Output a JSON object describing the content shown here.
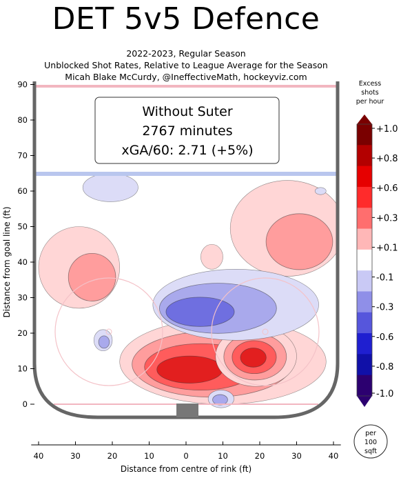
{
  "title": "DET 5v5 Defence",
  "subtitle_lines": [
    "2022-2023, Regular Season",
    "Unblocked Shot Rates, Relative to League Average for the Season",
    "Micah Blake McCurdy, @IneffectiveMath, hockeyviz.com"
  ],
  "annotation_lines": [
    "Without Suter",
    "2767 minutes",
    "xGA/60: 2.71 (+5%)"
  ],
  "per_unit_label": [
    "per",
    "100",
    "sqft"
  ],
  "colorbar": {
    "title_lines": [
      "Excess",
      "shots",
      "per hour"
    ],
    "ticks": [
      "+1.0",
      "+0.8",
      "+0.6",
      "+0.3",
      "+0.1",
      "-0.1",
      "-0.3",
      "-0.6",
      "-0.8",
      "-1.0"
    ],
    "colors": [
      "#7a0000",
      "#b30000",
      "#e60000",
      "#ff2b2b",
      "#ff6e6e",
      "#ffb7b7",
      "#ffffff",
      "#c9c9f5",
      "#8f8fe8",
      "#5656dc",
      "#1f1fd0",
      "#1010a8",
      "#2c0070"
    ]
  },
  "chart_data": {
    "type": "heatmap",
    "xlabel": "Distance from centre of rink (ft)",
    "ylabel": "Distance from goal line (ft)",
    "xlim": [
      -42,
      42
    ],
    "ylim": [
      -8,
      90
    ],
    "xticks": [
      40,
      30,
      20,
      10,
      0,
      10,
      20,
      30,
      40
    ],
    "yticks": [
      0,
      10,
      20,
      30,
      40,
      50,
      60,
      70,
      80,
      90
    ],
    "regions": [
      {
        "sign": "positive",
        "x": [
          -40,
          -18
        ],
        "y": [
          27,
          50
        ],
        "peak": 0.3,
        "center": [
          -22,
          33
        ]
      },
      {
        "sign": "positive",
        "x": [
          -18,
          38
        ],
        "y": [
          0,
          24
        ],
        "peak": 0.8,
        "center": [
          -2,
          9
        ]
      },
      {
        "sign": "positive",
        "x": [
          8,
          30
        ],
        "y": [
          5,
          22
        ],
        "peak": 0.8,
        "center": [
          18,
          13
        ]
      },
      {
        "sign": "positive",
        "x": [
          12,
          43
        ],
        "y": [
          36,
          63
        ],
        "peak": 0.3,
        "center": [
          34,
          42
        ]
      },
      {
        "sign": "positive",
        "x": [
          4,
          10
        ],
        "y": [
          38,
          45
        ],
        "peak": 0.1,
        "center": [
          7,
          41
        ]
      },
      {
        "sign": "negative",
        "x": [
          -9,
          36
        ],
        "y": [
          18,
          38
        ],
        "peak": -0.6,
        "center": [
          -1,
          25
        ]
      },
      {
        "sign": "negative",
        "x": [
          -28,
          -13
        ],
        "y": [
          57,
          65
        ],
        "peak": -0.1,
        "center": [
          -22,
          62
        ]
      },
      {
        "sign": "negative",
        "x": [
          -25,
          -20
        ],
        "y": [
          15,
          21
        ],
        "peak": -0.3,
        "center": [
          -22,
          17
        ]
      },
      {
        "sign": "negative",
        "x": [
          6,
          13
        ],
        "y": [
          -1,
          4
        ],
        "peak": -0.3,
        "center": [
          9,
          1
        ]
      },
      {
        "sign": "negative",
        "x": [
          35,
          38
        ],
        "y": [
          59,
          61
        ],
        "peak": -0.1,
        "center": [
          36,
          60
        ]
      }
    ]
  }
}
